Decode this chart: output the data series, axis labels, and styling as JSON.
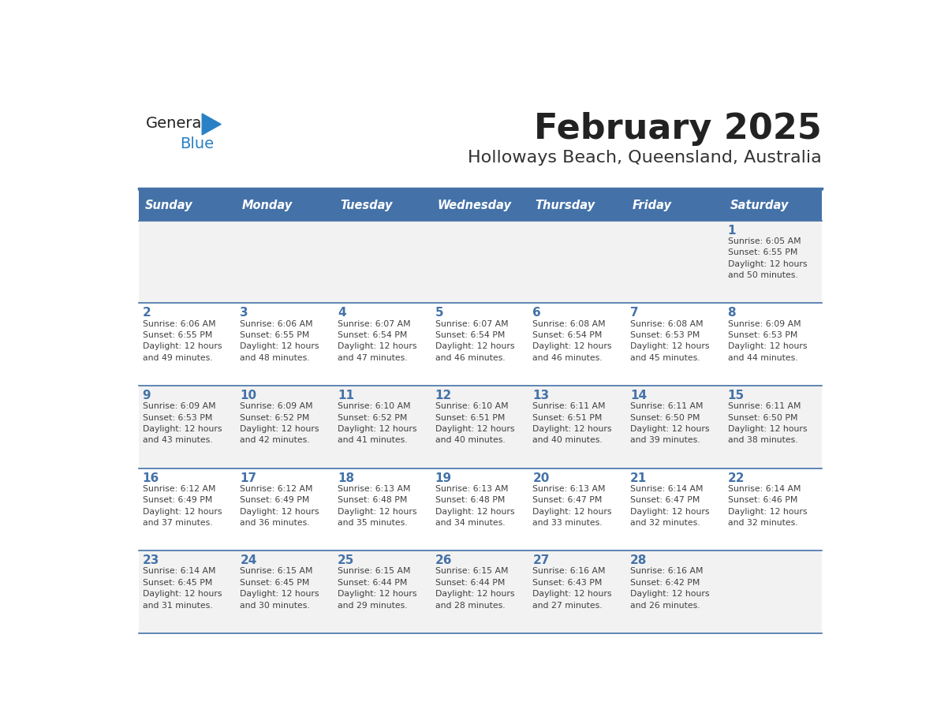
{
  "title": "February 2025",
  "subtitle": "Holloways Beach, Queensland, Australia",
  "header_bg": "#4472A8",
  "header_text_color": "#FFFFFF",
  "weekdays": [
    "Sunday",
    "Monday",
    "Tuesday",
    "Wednesday",
    "Thursday",
    "Friday",
    "Saturday"
  ],
  "row1_bg": "#F2F2F2",
  "row2_bg": "#FFFFFF",
  "border_color": "#4472A8",
  "day_num_color": "#4472A8",
  "info_text_color": "#404040",
  "title_color": "#222222",
  "subtitle_color": "#333333",
  "logo_general_color": "#222222",
  "logo_blue_color": "#2980C4",
  "calendar": [
    [
      {
        "day": null,
        "info": null
      },
      {
        "day": null,
        "info": null
      },
      {
        "day": null,
        "info": null
      },
      {
        "day": null,
        "info": null
      },
      {
        "day": null,
        "info": null
      },
      {
        "day": null,
        "info": null
      },
      {
        "day": 1,
        "info": "Sunrise: 6:05 AM\nSunset: 6:55 PM\nDaylight: 12 hours\nand 50 minutes."
      }
    ],
    [
      {
        "day": 2,
        "info": "Sunrise: 6:06 AM\nSunset: 6:55 PM\nDaylight: 12 hours\nand 49 minutes."
      },
      {
        "day": 3,
        "info": "Sunrise: 6:06 AM\nSunset: 6:55 PM\nDaylight: 12 hours\nand 48 minutes."
      },
      {
        "day": 4,
        "info": "Sunrise: 6:07 AM\nSunset: 6:54 PM\nDaylight: 12 hours\nand 47 minutes."
      },
      {
        "day": 5,
        "info": "Sunrise: 6:07 AM\nSunset: 6:54 PM\nDaylight: 12 hours\nand 46 minutes."
      },
      {
        "day": 6,
        "info": "Sunrise: 6:08 AM\nSunset: 6:54 PM\nDaylight: 12 hours\nand 46 minutes."
      },
      {
        "day": 7,
        "info": "Sunrise: 6:08 AM\nSunset: 6:53 PM\nDaylight: 12 hours\nand 45 minutes."
      },
      {
        "day": 8,
        "info": "Sunrise: 6:09 AM\nSunset: 6:53 PM\nDaylight: 12 hours\nand 44 minutes."
      }
    ],
    [
      {
        "day": 9,
        "info": "Sunrise: 6:09 AM\nSunset: 6:53 PM\nDaylight: 12 hours\nand 43 minutes."
      },
      {
        "day": 10,
        "info": "Sunrise: 6:09 AM\nSunset: 6:52 PM\nDaylight: 12 hours\nand 42 minutes."
      },
      {
        "day": 11,
        "info": "Sunrise: 6:10 AM\nSunset: 6:52 PM\nDaylight: 12 hours\nand 41 minutes."
      },
      {
        "day": 12,
        "info": "Sunrise: 6:10 AM\nSunset: 6:51 PM\nDaylight: 12 hours\nand 40 minutes."
      },
      {
        "day": 13,
        "info": "Sunrise: 6:11 AM\nSunset: 6:51 PM\nDaylight: 12 hours\nand 40 minutes."
      },
      {
        "day": 14,
        "info": "Sunrise: 6:11 AM\nSunset: 6:50 PM\nDaylight: 12 hours\nand 39 minutes."
      },
      {
        "day": 15,
        "info": "Sunrise: 6:11 AM\nSunset: 6:50 PM\nDaylight: 12 hours\nand 38 minutes."
      }
    ],
    [
      {
        "day": 16,
        "info": "Sunrise: 6:12 AM\nSunset: 6:49 PM\nDaylight: 12 hours\nand 37 minutes."
      },
      {
        "day": 17,
        "info": "Sunrise: 6:12 AM\nSunset: 6:49 PM\nDaylight: 12 hours\nand 36 minutes."
      },
      {
        "day": 18,
        "info": "Sunrise: 6:13 AM\nSunset: 6:48 PM\nDaylight: 12 hours\nand 35 minutes."
      },
      {
        "day": 19,
        "info": "Sunrise: 6:13 AM\nSunset: 6:48 PM\nDaylight: 12 hours\nand 34 minutes."
      },
      {
        "day": 20,
        "info": "Sunrise: 6:13 AM\nSunset: 6:47 PM\nDaylight: 12 hours\nand 33 minutes."
      },
      {
        "day": 21,
        "info": "Sunrise: 6:14 AM\nSunset: 6:47 PM\nDaylight: 12 hours\nand 32 minutes."
      },
      {
        "day": 22,
        "info": "Sunrise: 6:14 AM\nSunset: 6:46 PM\nDaylight: 12 hours\nand 32 minutes."
      }
    ],
    [
      {
        "day": 23,
        "info": "Sunrise: 6:14 AM\nSunset: 6:45 PM\nDaylight: 12 hours\nand 31 minutes."
      },
      {
        "day": 24,
        "info": "Sunrise: 6:15 AM\nSunset: 6:45 PM\nDaylight: 12 hours\nand 30 minutes."
      },
      {
        "day": 25,
        "info": "Sunrise: 6:15 AM\nSunset: 6:44 PM\nDaylight: 12 hours\nand 29 minutes."
      },
      {
        "day": 26,
        "info": "Sunrise: 6:15 AM\nSunset: 6:44 PM\nDaylight: 12 hours\nand 28 minutes."
      },
      {
        "day": 27,
        "info": "Sunrise: 6:16 AM\nSunset: 6:43 PM\nDaylight: 12 hours\nand 27 minutes."
      },
      {
        "day": 28,
        "info": "Sunrise: 6:16 AM\nSunset: 6:42 PM\nDaylight: 12 hours\nand 26 minutes."
      },
      {
        "day": null,
        "info": null
      }
    ]
  ]
}
